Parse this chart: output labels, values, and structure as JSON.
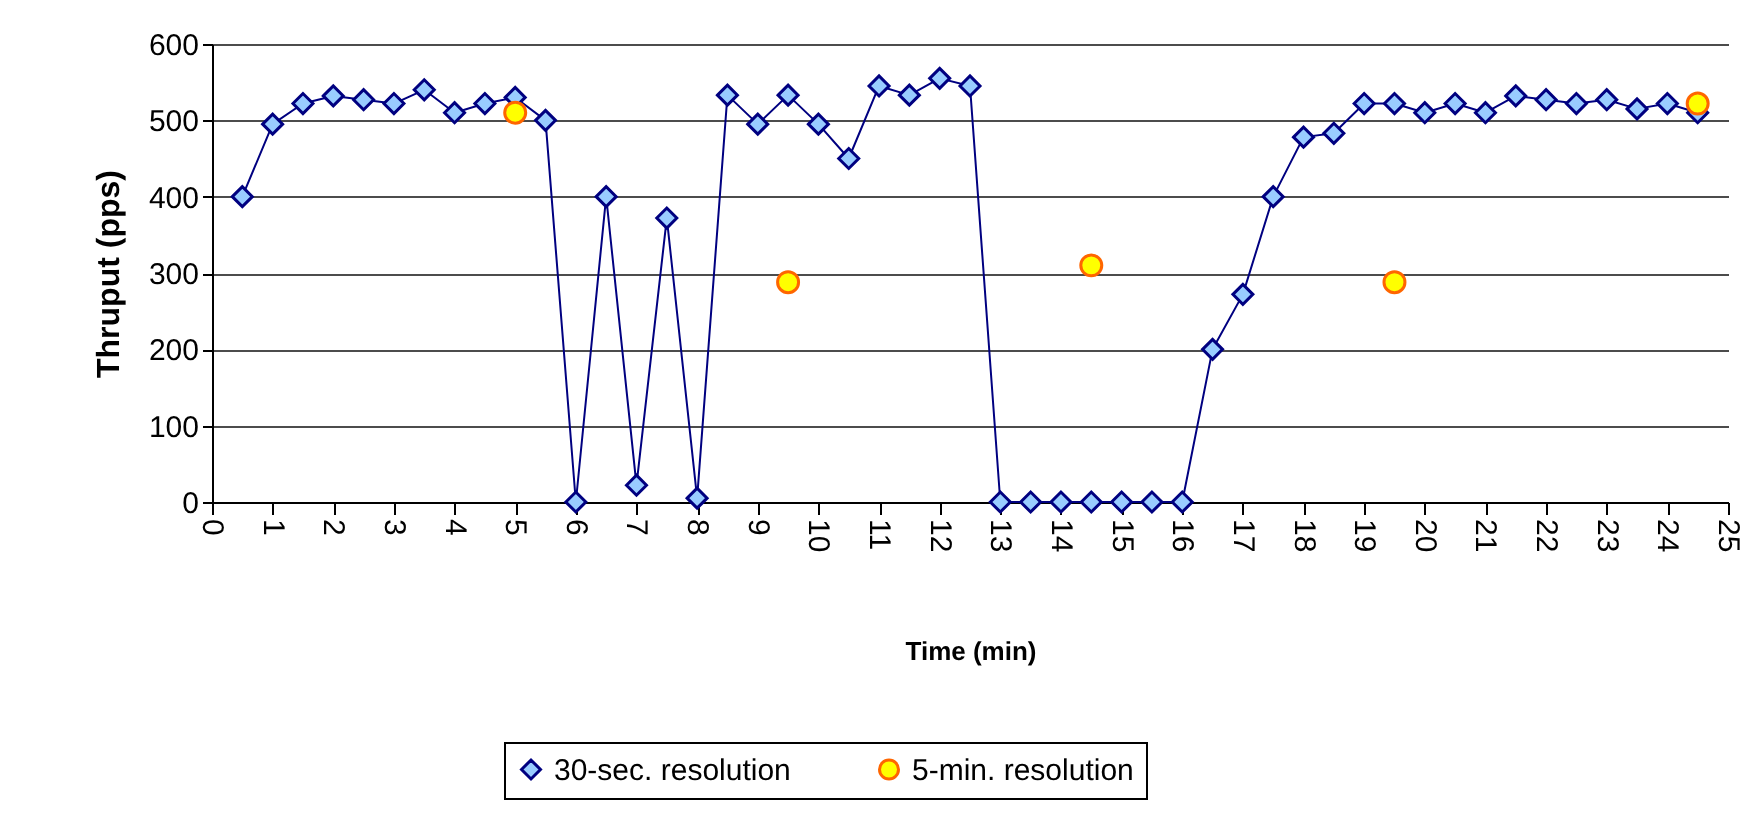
{
  "chart_data": {
    "type": "line",
    "xlabel": "Time (min)",
    "ylabel": "Thruput (pps)",
    "xlim": [
      0,
      25
    ],
    "xticks": [
      0,
      1,
      2,
      3,
      4,
      5,
      6,
      7,
      8,
      9,
      10,
      11,
      12,
      13,
      14,
      15,
      16,
      17,
      18,
      19,
      20,
      21,
      22,
      23,
      24,
      25
    ],
    "ylim": [
      0,
      600
    ],
    "yticks": [
      0,
      100,
      200,
      300,
      400,
      500,
      600
    ],
    "grid": "y",
    "legend": "bottom",
    "line_style": "solid",
    "series": [
      {
        "name": "30-sec. resolution",
        "type": "line",
        "marker": "diamond",
        "color": "#000080",
        "x": [
          0.5,
          1,
          1.5,
          2,
          2.5,
          3,
          3.5,
          4,
          4.5,
          5,
          5.5,
          6,
          6.5,
          7,
          7.5,
          8,
          8.5,
          9,
          9.5,
          10,
          10.5,
          11,
          11.5,
          12,
          12.5,
          13,
          13.5,
          14,
          14.5,
          15,
          15.5,
          16,
          16.5,
          17,
          17.5,
          18,
          18.5,
          19,
          19.5,
          20,
          20.5,
          21,
          21.5,
          22,
          22.5,
          23,
          23.5,
          24,
          24.5
        ],
        "values": [
          400,
          495,
          522,
          532,
          527,
          522,
          540,
          510,
          522,
          530,
          500,
          0,
          400,
          22,
          372,
          5,
          533,
          495,
          533,
          495,
          450,
          545,
          533,
          555,
          545,
          0,
          0,
          0,
          0,
          0,
          0,
          0,
          200,
          272,
          400,
          478,
          483,
          522,
          522,
          510,
          522,
          510,
          532,
          527,
          522,
          527,
          515,
          522,
          510
        ]
      },
      {
        "name": "5-min. resolution",
        "type": "scatter",
        "marker": "circle",
        "color": "#ffff00",
        "x": [
          5,
          9.5,
          14.5,
          19.5,
          24.5
        ],
        "values": [
          510,
          288,
          310,
          288,
          522
        ]
      }
    ]
  }
}
